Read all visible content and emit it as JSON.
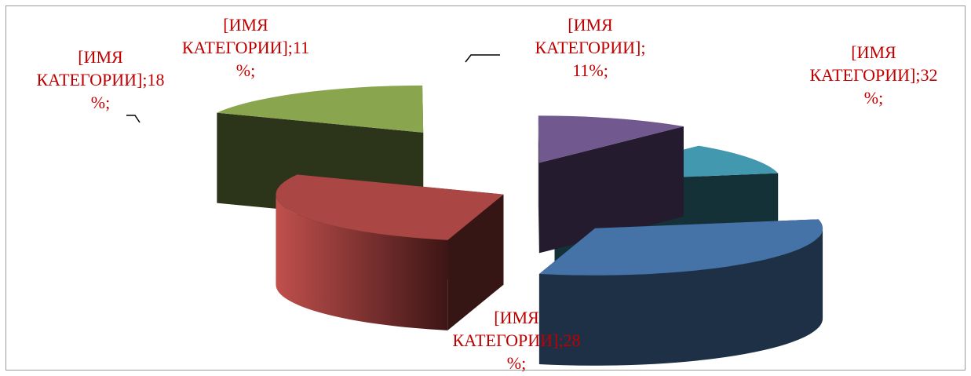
{
  "chart_data": {
    "type": "pie",
    "variant": "exploded-3d",
    "slices": [
      {
        "value": 32,
        "color": "#4572a7",
        "label_lines": [
          "[ИМЯ",
          "КАТЕГОРИИ];32",
          "%;"
        ]
      },
      {
        "value": 28,
        "color": "#aa4643",
        "label_lines": [
          "[ИМЯ",
          "КАТЕГОРИИ];28",
          "%;"
        ]
      },
      {
        "value": 18,
        "color": "#89a54e",
        "label_lines": [
          "[ИМЯ",
          "КАТЕГОРИИ];18",
          "%;"
        ]
      },
      {
        "value": 11,
        "color": "#71588f",
        "label_lines": [
          "[ИМЯ",
          "КАТЕГОРИИ];11",
          "%;"
        ]
      },
      {
        "value": 11,
        "color": "#4198af",
        "label_lines": [
          "[ИМЯ",
          "КАТЕГОРИИ];",
          "11%;"
        ]
      }
    ],
    "label_color": "#c00000",
    "legend": "none"
  }
}
